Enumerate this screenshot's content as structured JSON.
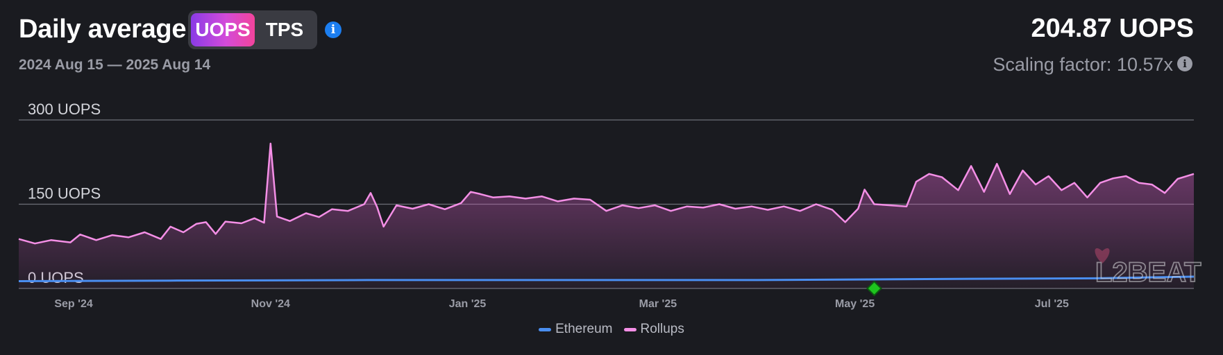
{
  "header": {
    "title": "Daily average",
    "toggle": {
      "active": "UOPS",
      "inactive": "TPS"
    },
    "date_range": "2024 Aug 15 — 2025 Aug 14",
    "stat_value": "204.87 UOPS",
    "scaling_factor": "Scaling factor: 10.57x",
    "info_icon": "info-icon"
  },
  "watermark": {
    "text": "L2BEAT",
    "icon": "heart-icon"
  },
  "colors": {
    "background": "#1a1b20",
    "rollups": "#f48fe6",
    "ethereum": "#4a8ef0",
    "accent_gradient": [
      "#8a3be6",
      "#f2449b"
    ],
    "event_marker": "#1ec41e"
  },
  "chart_data": {
    "type": "area",
    "title": "",
    "x_range": [
      "2024-08-15",
      "2025-08-14"
    ],
    "x_ticks": [
      {
        "date": "2024-09-01",
        "label": "Sep '24"
      },
      {
        "date": "2024-11-01",
        "label": "Nov '24"
      },
      {
        "date": "2025-01-01",
        "label": "Jan '25"
      },
      {
        "date": "2025-03-01",
        "label": "Mar '25"
      },
      {
        "date": "2025-05-01",
        "label": "May '25"
      },
      {
        "date": "2025-07-01",
        "label": "Jul '25"
      }
    ],
    "y_ticks": [
      {
        "value": 0,
        "label": "0 UOPS"
      },
      {
        "value": 150,
        "label": "150 UOPS"
      },
      {
        "value": 300,
        "label": "300 UOPS"
      }
    ],
    "ylim": [
      0,
      300
    ],
    "grid": true,
    "legend_position": "bottom-center",
    "event_markers": [
      {
        "date": "2025-05-07"
      }
    ],
    "series": [
      {
        "name": "Rollups",
        "color": "#f48fe6",
        "points": [
          [
            "2024-08-15",
            88
          ],
          [
            "2024-08-20",
            80
          ],
          [
            "2024-08-25",
            86
          ],
          [
            "2024-08-31",
            82
          ],
          [
            "2024-09-03",
            96
          ],
          [
            "2024-09-08",
            86
          ],
          [
            "2024-09-13",
            95
          ],
          [
            "2024-09-18",
            91
          ],
          [
            "2024-09-23",
            100
          ],
          [
            "2024-09-28",
            88
          ],
          [
            "2024-10-01",
            110
          ],
          [
            "2024-10-05",
            100
          ],
          [
            "2024-10-09",
            115
          ],
          [
            "2024-10-12",
            118
          ],
          [
            "2024-10-15",
            97
          ],
          [
            "2024-10-18",
            119
          ],
          [
            "2024-10-23",
            116
          ],
          [
            "2024-10-27",
            125
          ],
          [
            "2024-10-30",
            117
          ],
          [
            "2024-11-01",
            258
          ],
          [
            "2024-11-03",
            128
          ],
          [
            "2024-11-07",
            120
          ],
          [
            "2024-11-12",
            134
          ],
          [
            "2024-11-16",
            127
          ],
          [
            "2024-11-20",
            141
          ],
          [
            "2024-11-25",
            138
          ],
          [
            "2024-11-30",
            150
          ],
          [
            "2024-12-02",
            170
          ],
          [
            "2024-12-04",
            145
          ],
          [
            "2024-12-06",
            110
          ],
          [
            "2024-12-10",
            148
          ],
          [
            "2024-12-15",
            142
          ],
          [
            "2024-12-20",
            150
          ],
          [
            "2024-12-25",
            141
          ],
          [
            "2024-12-30",
            152
          ],
          [
            "2025-01-02",
            172
          ],
          [
            "2025-01-05",
            168
          ],
          [
            "2025-01-09",
            162
          ],
          [
            "2025-01-14",
            164
          ],
          [
            "2025-01-19",
            160
          ],
          [
            "2025-01-24",
            164
          ],
          [
            "2025-01-29",
            155
          ],
          [
            "2025-02-03",
            160
          ],
          [
            "2025-02-08",
            158
          ],
          [
            "2025-02-13",
            138
          ],
          [
            "2025-02-18",
            148
          ],
          [
            "2025-02-23",
            143
          ],
          [
            "2025-02-28",
            148
          ],
          [
            "2025-03-05",
            138
          ],
          [
            "2025-03-10",
            146
          ],
          [
            "2025-03-15",
            144
          ],
          [
            "2025-03-20",
            150
          ],
          [
            "2025-03-25",
            142
          ],
          [
            "2025-03-30",
            146
          ],
          [
            "2025-04-04",
            140
          ],
          [
            "2025-04-09",
            146
          ],
          [
            "2025-04-14",
            138
          ],
          [
            "2025-04-19",
            150
          ],
          [
            "2025-04-24",
            140
          ],
          [
            "2025-04-28",
            118
          ],
          [
            "2025-05-02",
            142
          ],
          [
            "2025-05-04",
            176
          ],
          [
            "2025-05-07",
            150
          ],
          [
            "2025-05-12",
            148
          ],
          [
            "2025-05-17",
            146
          ],
          [
            "2025-05-20",
            190
          ],
          [
            "2025-05-24",
            204
          ],
          [
            "2025-05-28",
            198
          ],
          [
            "2025-06-02",
            175
          ],
          [
            "2025-06-06",
            218
          ],
          [
            "2025-06-10",
            172
          ],
          [
            "2025-06-14",
            222
          ],
          [
            "2025-06-18",
            168
          ],
          [
            "2025-06-22",
            210
          ],
          [
            "2025-06-26",
            185
          ],
          [
            "2025-06-30",
            200
          ],
          [
            "2025-07-04",
            175
          ],
          [
            "2025-07-08",
            188
          ],
          [
            "2025-07-12",
            162
          ],
          [
            "2025-07-16",
            188
          ],
          [
            "2025-07-20",
            196
          ],
          [
            "2025-07-24",
            200
          ],
          [
            "2025-07-28",
            188
          ],
          [
            "2025-08-01",
            185
          ],
          [
            "2025-08-05",
            170
          ],
          [
            "2025-08-09",
            195
          ],
          [
            "2025-08-14",
            204
          ]
        ]
      },
      {
        "name": "Ethereum",
        "color": "#4a8ef0",
        "points": [
          [
            "2024-08-15",
            13
          ],
          [
            "2024-10-01",
            14
          ],
          [
            "2024-12-01",
            15
          ],
          [
            "2025-02-01",
            15
          ],
          [
            "2025-04-01",
            15
          ],
          [
            "2025-06-01",
            17
          ],
          [
            "2025-07-15",
            18
          ],
          [
            "2025-08-14",
            21
          ]
        ]
      }
    ]
  }
}
